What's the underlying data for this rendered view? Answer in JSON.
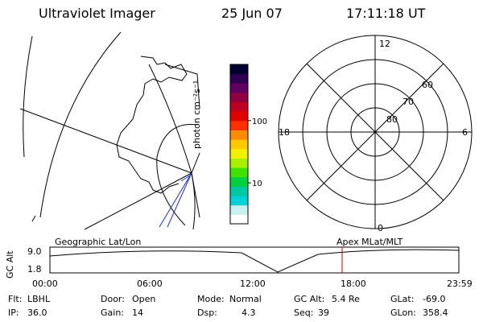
{
  "header": {
    "title": "Ultraviolet Imager",
    "date": "25 Jun 07",
    "time": "17:11:18 UT"
  },
  "colorbar": {
    "unit_label": "photon cm⁻²s⁻¹",
    "ticks": [
      {
        "value": 100,
        "label": "100"
      },
      {
        "value": 10,
        "label": "10"
      }
    ],
    "colors": [
      "#ffffff",
      "#c8f0f0",
      "#00d0d8",
      "#00c8a0",
      "#00d040",
      "#40e000",
      "#a8f000",
      "#f0f000",
      "#ffc800",
      "#ff8c00",
      "#ff3000",
      "#e00000",
      "#c00020",
      "#900040",
      "#600060",
      "#300050",
      "#000030"
    ]
  },
  "polar_dial": {
    "mlt_labels": {
      "top": "12",
      "right": "6",
      "bottom": "0",
      "left": "18"
    },
    "lat_labels": [
      "80",
      "70",
      "60"
    ]
  },
  "timeline": {
    "y_axis_label": "GC Alt",
    "y_ticks": [
      "9.0",
      "1.8"
    ],
    "left_label": "Geographic Lat/Lon",
    "right_label": "Apex MLat/MLT",
    "x_ticks": [
      "00:00",
      "06:00",
      "12:00",
      "18:00",
      "23:59"
    ],
    "current_marker_time": "17:11:18",
    "marker_color": "#cc0000"
  },
  "info": {
    "col1": [
      {
        "label": "Flt:",
        "value": "LBHL"
      },
      {
        "label": "IP:",
        "value": "36.0"
      }
    ],
    "col2": [
      {
        "label": "Door:",
        "value": "Open"
      },
      {
        "label": "Gain:",
        "value": "14"
      }
    ],
    "col3": [
      {
        "label": "Mode:",
        "value": "Normal"
      },
      {
        "label": "Dsp:",
        "value": "4.3"
      }
    ],
    "col4": [
      {
        "label": "GC Alt:",
        "value": "5.4 Re"
      },
      {
        "label": "Seq:",
        "value": "39"
      }
    ],
    "col5": [
      {
        "label": "GLat:",
        "value": "-69.0"
      },
      {
        "label": "GLon:",
        "value": "358.4"
      }
    ]
  }
}
